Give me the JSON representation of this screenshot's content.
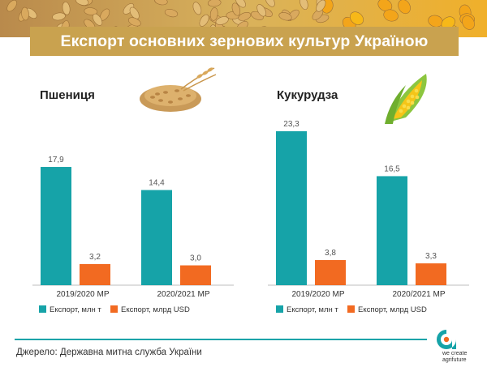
{
  "page": {
    "title": "Експорт основних зернових культур Україною",
    "source": "Джерело: Державна митна служба України",
    "brand_lines": [
      "we create",
      "agrifuture"
    ]
  },
  "colors": {
    "teal": "#16a3a8",
    "orange": "#f26a21",
    "gold": "#c9a24f"
  },
  "icons": [
    "wheat-grains-icon",
    "corn-cob-icon",
    "brand-logo-icon"
  ],
  "chart_data": [
    {
      "type": "bar",
      "title": "Пшениця",
      "categories": [
        "2019/2020 МР",
        "2020/2021 МР"
      ],
      "series": [
        {
          "name": "Експорт, млн т",
          "values": [
            17.9,
            14.4
          ],
          "labels": [
            "17,9",
            "14,4"
          ]
        },
        {
          "name": "Експорт, млрд USD",
          "values": [
            3.2,
            3.0
          ],
          "labels": [
            "3,2",
            "3,0"
          ]
        }
      ],
      "ylim": [
        0,
        23.3
      ],
      "legend": "bottom",
      "grid": false
    },
    {
      "type": "bar",
      "title": "Кукурудза",
      "categories": [
        "2019/2020 МР",
        "2020/2021 МР"
      ],
      "series": [
        {
          "name": "Експорт, млн т",
          "values": [
            23.3,
            16.5
          ],
          "labels": [
            "23,3",
            "16,5"
          ]
        },
        {
          "name": "Експорт, млрд USD",
          "values": [
            3.8,
            3.3
          ],
          "labels": [
            "3,8",
            "3,3"
          ]
        }
      ],
      "ylim": [
        0,
        23.3
      ],
      "legend": "bottom",
      "grid": false
    }
  ]
}
